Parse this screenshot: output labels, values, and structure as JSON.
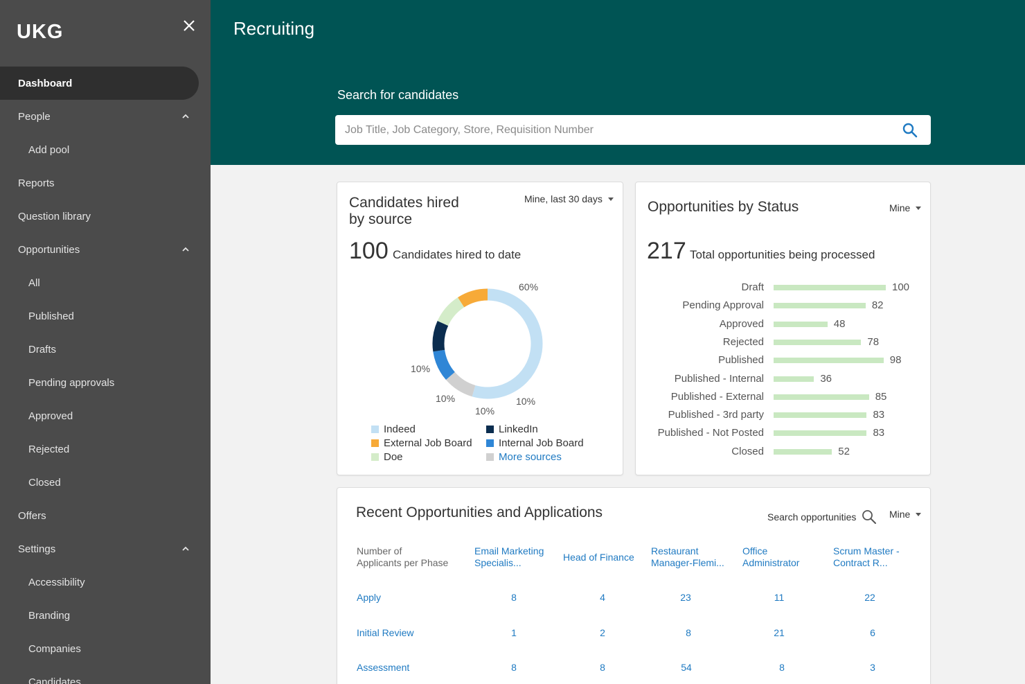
{
  "sidebar": {
    "logo_text": "UKG",
    "items": [
      {
        "label": "Dashboard"
      },
      {
        "label": "People"
      },
      {
        "label": "Add pool"
      },
      {
        "label": "Reports"
      },
      {
        "label": "Question library"
      },
      {
        "label": "Opportunities"
      },
      {
        "label": "All"
      },
      {
        "label": "Published"
      },
      {
        "label": "Drafts"
      },
      {
        "label": "Pending approvals"
      },
      {
        "label": "Approved"
      },
      {
        "label": "Rejected"
      },
      {
        "label": "Closed"
      },
      {
        "label": "Offers"
      },
      {
        "label": "Settings"
      },
      {
        "label": "Accessibility"
      },
      {
        "label": "Branding"
      },
      {
        "label": "Companies"
      },
      {
        "label": "Candidates"
      }
    ]
  },
  "header": {
    "title": "Recruiting",
    "search_label": "Search for candidates",
    "search_placeholder": "Job Title, Job Category, Store, Requisition Number"
  },
  "hired_card": {
    "title_line1": "Candidates hired",
    "title_line2": "by source",
    "filter": "Mine, last 30 days",
    "total": "100",
    "total_label": "Candidates hired to date",
    "colors": {
      "indeed": "#c2e0f4",
      "more": "#d0d0d0",
      "internal": "#2f86d6",
      "linkedin": "#0b2d4f",
      "doe": "#d4ecc9",
      "external": "#f7aa38"
    },
    "chart_data": {
      "type": "pie",
      "labels": [
        "Indeed",
        "More sources",
        "Internal Job Board",
        "LinkedIn",
        "Doe",
        "External Job Board"
      ],
      "values": [
        60,
        10,
        10,
        10,
        10,
        10
      ],
      "pct_labels": [
        "60%",
        "10%",
        "10%",
        "10%",
        "10%"
      ]
    },
    "legend": [
      "Indeed",
      "External Job Board",
      "Doe",
      "LinkedIn",
      "Internal Job Board",
      "More sources"
    ]
  },
  "status_card": {
    "title": "Opportunities by Status",
    "filter": "Mine",
    "total": "217",
    "total_label": "Total opportunities being processed",
    "bar_color": "#c9e8c1",
    "chart_data": {
      "type": "bar",
      "orientation": "horizontal",
      "categories": [
        "Draft",
        "Pending Approval",
        "Approved",
        "Rejected",
        "Published",
        "Published - Internal",
        "Published - External",
        "Published - 3rd party",
        "Published - Not Posted",
        "Closed"
      ],
      "values": [
        100,
        82,
        48,
        78,
        98,
        36,
        85,
        83,
        83,
        52
      ],
      "value_labels": [
        "100",
        "82",
        "48",
        "78",
        "98",
        "36",
        "85",
        "83",
        "83",
        "52"
      ]
    }
  },
  "recent_card": {
    "title": "Recent Opportunities and Applications",
    "search_label": "Search opportunities",
    "filter": "Mine",
    "row_header_line1": "Number of",
    "row_header_line2": "Applicants per Phase",
    "columns": [
      {
        "line1": "Email Marketing",
        "line2": "Specialis..."
      },
      {
        "line1": "Head of Finance",
        "line2": ""
      },
      {
        "line1": "Restaurant",
        "line2": "Manager-Flemi..."
      },
      {
        "line1": "Office",
        "line2": "Administrator"
      },
      {
        "line1": "Scrum Master -",
        "line2": "Contract R..."
      }
    ],
    "rows": [
      {
        "phase": "Apply",
        "values": [
          "8",
          "4",
          "23",
          "11",
          "22"
        ]
      },
      {
        "phase": "Initial Review",
        "values": [
          "1",
          "2",
          "8",
          "21",
          "6"
        ]
      },
      {
        "phase": "Assessment",
        "values": [
          "8",
          "8",
          "54",
          "8",
          "3"
        ]
      }
    ]
  }
}
